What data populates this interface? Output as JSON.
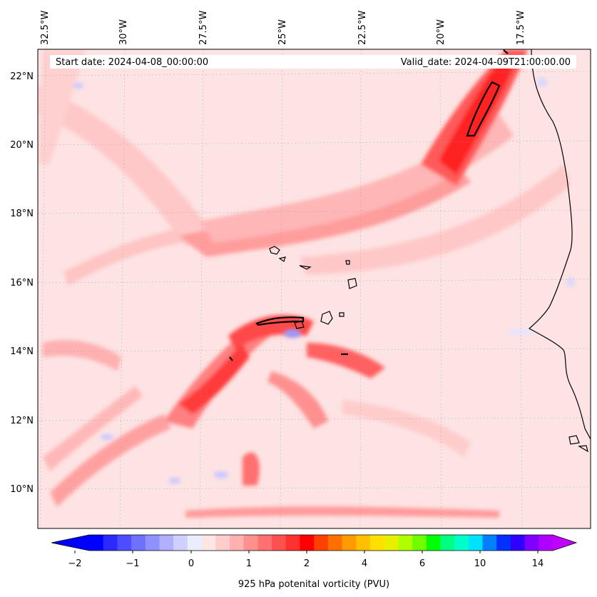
{
  "header": {
    "start_date": "Start date: 2024-04-08_00:00:00",
    "valid_date": "Valid_date: 2024-04-09T21:00:00.00"
  },
  "map": {
    "lon_labels": [
      "32.5°W",
      "30°W",
      "27.5°W",
      "25°W",
      "22.5°W",
      "20°W",
      "17.5°W"
    ],
    "lat_labels": [
      "22°N",
      "20°N",
      "18°N",
      "16°N",
      "14°N",
      "12°N",
      "10°N"
    ],
    "field": "925 hPa potential vorticity",
    "background_color": "#fde3e3"
  },
  "colorbar": {
    "label": "925 hPa potenital vorticity (PVU)",
    "tick_labels": [
      "−2",
      "−1",
      "0",
      "1",
      "2",
      "4",
      "6",
      "10",
      "14"
    ],
    "colors": [
      "#0000ff",
      "#2a2aff",
      "#4d4dff",
      "#7070ff",
      "#9090ff",
      "#b0b0ff",
      "#d0d0ff",
      "#ececff",
      "#ffe6e6",
      "#ffcccc",
      "#ffb0b0",
      "#ff9090",
      "#ff7070",
      "#ff5050",
      "#ff3030",
      "#ff0000",
      "#ff4000",
      "#ff7000",
      "#ff9a00",
      "#ffc000",
      "#ffe000",
      "#e8f000",
      "#b0ff00",
      "#70ff00",
      "#00ff00",
      "#00ff80",
      "#00ffc8",
      "#00e0ff",
      "#0080ff",
      "#0030ff",
      "#3000ff",
      "#8000ff",
      "#b000ff"
    ],
    "under_color": "#0000ff",
    "over_color": "#c000ff"
  }
}
